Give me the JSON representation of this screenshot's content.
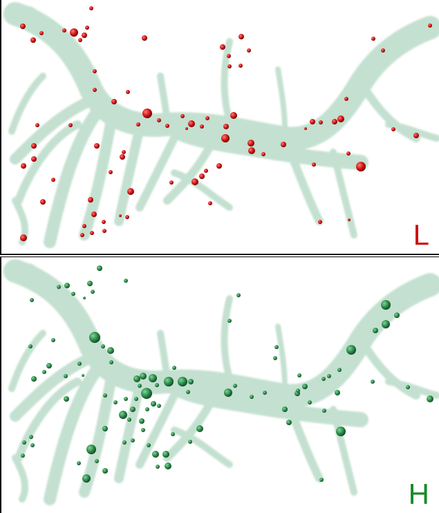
{
  "panels": [
    {
      "id": "top",
      "label": "L",
      "label_color": "#cc1111",
      "marker_color": "#cc1111",
      "marker_dark": "#7a0000"
    },
    {
      "id": "bottom",
      "label": "H",
      "label_color": "#1a8a2a",
      "marker_color": "#2e8b4a",
      "marker_dark": "#0f4a22"
    }
  ],
  "structure_color": "#b7d9c6"
}
